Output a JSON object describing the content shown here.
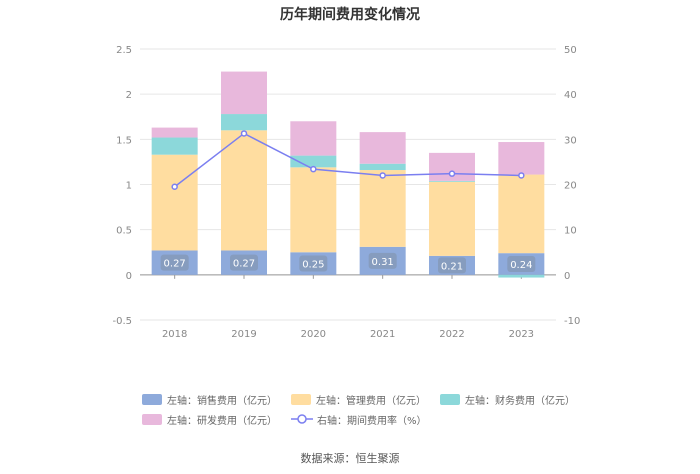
{
  "chart_data": {
    "type": "bar",
    "stacked": true,
    "title": "历年期间费用变化情况",
    "categories": [
      "2018",
      "2019",
      "2020",
      "2021",
      "2022",
      "2023"
    ],
    "left_axis": {
      "ylim": [
        -0.5,
        2.5
      ],
      "ticks": [
        "-0.5",
        "0",
        "0.5",
        "1",
        "1.5",
        "2",
        "2.5"
      ],
      "tick_values": [
        -0.5,
        0,
        0.5,
        1,
        1.5,
        2,
        2.5
      ]
    },
    "right_axis": {
      "ylim": [
        -10,
        50
      ],
      "ticks": [
        "-10",
        "0",
        "10",
        "20",
        "30",
        "40",
        "50"
      ],
      "tick_values": [
        -10,
        0,
        10,
        20,
        30,
        40,
        50
      ]
    },
    "series": [
      {
        "name": "左轴：销售费用（亿元）",
        "axis": "left",
        "color": "#8eaadb",
        "values": [
          0.27,
          0.27,
          0.25,
          0.31,
          0.21,
          0.24
        ],
        "labels": [
          "0.27",
          "0.27",
          "0.25",
          "0.31",
          "0.21",
          "0.24"
        ]
      },
      {
        "name": "左轴：管理费用（亿元）",
        "axis": "left",
        "color": "#ffdda0",
        "values": [
          1.06,
          1.33,
          0.94,
          0.85,
          0.82,
          0.87
        ]
      },
      {
        "name": "左轴：财务费用（亿元）",
        "axis": "left",
        "color": "#8cd8da",
        "values": [
          0.19,
          0.18,
          0.13,
          0.07,
          0.01,
          -0.03
        ]
      },
      {
        "name": "左轴：研发费用（亿元）",
        "axis": "left",
        "color": "#e8b8dc",
        "values": [
          0.11,
          0.47,
          0.38,
          0.35,
          0.31,
          0.36
        ]
      }
    ],
    "line_series": {
      "name": "右轴：期间费用率（%）",
      "axis": "right",
      "color": "#7b7ff0",
      "values": [
        19.5,
        31.3,
        23.4,
        22.0,
        22.4,
        22.0
      ]
    },
    "legend_position": "bottom"
  },
  "source": "数据来源：恒生聚源"
}
